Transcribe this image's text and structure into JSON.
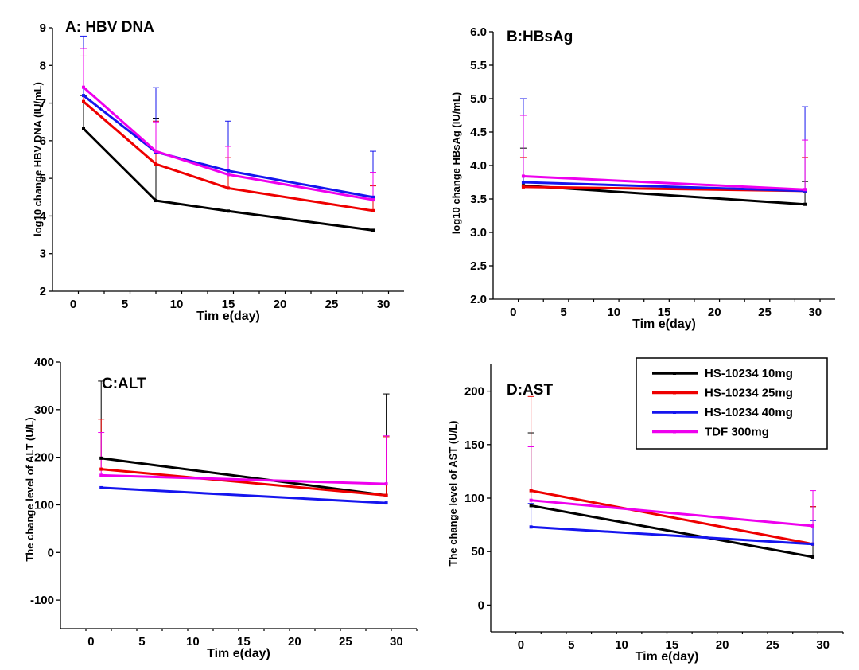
{
  "chart_data": [
    {
      "id": "A",
      "type": "line",
      "title": "A: HBV DNA",
      "xlabel": "Tim e(day)",
      "ylabel": "log10 change HBV DNA (IU/mL)",
      "xlim": [
        -2,
        32
      ],
      "ylim": [
        2,
        9
      ],
      "xticks": [
        0,
        5,
        10,
        15,
        20,
        25,
        30
      ],
      "yticks": [
        2,
        3,
        4,
        5,
        6,
        7,
        8,
        9
      ],
      "ytick_labels": [
        "2",
        "3",
        "4",
        "5",
        "6",
        "7",
        "8",
        "9"
      ],
      "x": [
        1,
        8,
        15,
        29
      ],
      "series": [
        {
          "name": "HS-10234 10mg",
          "values": [
            6.32,
            4.41,
            4.13,
            3.62
          ],
          "errors": [
            7.2,
            6.6,
            4.13,
            3.62
          ]
        },
        {
          "name": "HS-10234 25mg",
          "values": [
            7.04,
            5.38,
            4.74,
            4.14
          ],
          "errors": [
            8.25,
            6.52,
            5.55,
            4.8
          ]
        },
        {
          "name": "HS-10234 40mg",
          "values": [
            7.2,
            5.7,
            5.2,
            4.5
          ],
          "errors": [
            8.78,
            7.41,
            6.52,
            5.72
          ]
        },
        {
          "name": "TDF 300mg",
          "values": [
            7.42,
            5.72,
            5.1,
            4.43
          ],
          "errors": [
            8.45,
            6.5,
            5.85,
            5.16
          ]
        }
      ]
    },
    {
      "id": "B",
      "type": "line",
      "title": "B:HBsAg",
      "xlabel": "Tim e(day)",
      "ylabel": "log10 change HBsAg (IU/mL)",
      "xlim": [
        -2,
        32
      ],
      "ylim": [
        2,
        6
      ],
      "xticks": [
        0,
        5,
        10,
        15,
        20,
        25,
        30
      ],
      "yticks": [
        2,
        2.5,
        3,
        3.5,
        4,
        4.5,
        5,
        5.5,
        6
      ],
      "ytick_labels": [
        "2.0",
        "2.5",
        "3.0",
        "3.5",
        "4.0",
        "4.5",
        "5.0",
        "5.5",
        "6.0"
      ],
      "x": [
        1,
        29
      ],
      "series": [
        {
          "name": "HS-10234 10mg",
          "values": [
            3.7,
            3.42
          ],
          "errors": [
            4.26,
            3.76
          ]
        },
        {
          "name": "HS-10234 25mg",
          "values": [
            3.68,
            3.62
          ],
          "errors": [
            4.12,
            4.12
          ]
        },
        {
          "name": "HS-10234 40mg",
          "values": [
            3.75,
            3.62
          ],
          "errors": [
            5.0,
            4.88
          ]
        },
        {
          "name": "TDF 300mg",
          "values": [
            3.84,
            3.64
          ],
          "errors": [
            4.75,
            4.38
          ]
        }
      ]
    },
    {
      "id": "C",
      "type": "line",
      "title": "C:ALT",
      "xlabel": "Tim e(day)",
      "ylabel": "The change level of ALT (U/L)",
      "xlim": [
        -3,
        32
      ],
      "ylim": [
        -160,
        400
      ],
      "xticks": [
        0,
        5,
        10,
        15,
        20,
        25,
        30
      ],
      "yticks": [
        -100,
        0,
        100,
        200,
        300,
        400
      ],
      "ytick_labels": [
        "-100",
        "0",
        "100",
        "200",
        "300",
        "400"
      ],
      "x": [
        1,
        29
      ],
      "series": [
        {
          "name": "HS-10234 10mg",
          "values": [
            198,
            120
          ],
          "errors": [
            360,
            333
          ]
        },
        {
          "name": "HS-10234 25mg",
          "values": [
            175,
            120
          ],
          "errors": [
            280,
            243
          ]
        },
        {
          "name": "HS-10234 40mg",
          "values": [
            136,
            104
          ],
          "errors": [
            136,
            104
          ]
        },
        {
          "name": "TDF 300mg",
          "values": [
            162,
            144
          ],
          "errors": [
            252,
            245
          ]
        }
      ]
    },
    {
      "id": "D",
      "type": "line",
      "title": "D:AST",
      "xlabel": "Tim e(day)",
      "ylabel": "The change level of AST (U/L)",
      "xlim": [
        -3,
        32
      ],
      "ylim": [
        -25,
        225
      ],
      "xticks": [
        0,
        5,
        10,
        15,
        20,
        25,
        30
      ],
      "yticks": [
        0,
        50,
        100,
        150,
        200
      ],
      "ytick_labels": [
        "0",
        "50",
        "100",
        "150",
        "200"
      ],
      "x": [
        1,
        29
      ],
      "series": [
        {
          "name": "HS-10234 10mg",
          "values": [
            93,
            45
          ],
          "errors": [
            161,
            92
          ]
        },
        {
          "name": "HS-10234 25mg",
          "values": [
            107,
            57
          ],
          "errors": [
            195,
            92
          ]
        },
        {
          "name": "HS-10234 40mg",
          "values": [
            73,
            57
          ],
          "errors": [
            95,
            79
          ]
        },
        {
          "name": "TDF 300mg",
          "values": [
            98,
            74
          ],
          "errors": [
            148,
            107
          ]
        }
      ],
      "legend_position": "top-right"
    }
  ],
  "legend": [
    {
      "name": "HS-10234 10mg",
      "color": "#000000"
    },
    {
      "name": "HS-10234 25mg",
      "color": "#ee0000"
    },
    {
      "name": "HS-10234 40mg",
      "color": "#1515ee"
    },
    {
      "name": "TDF 300mg",
      "color": "#ee00ee"
    }
  ]
}
